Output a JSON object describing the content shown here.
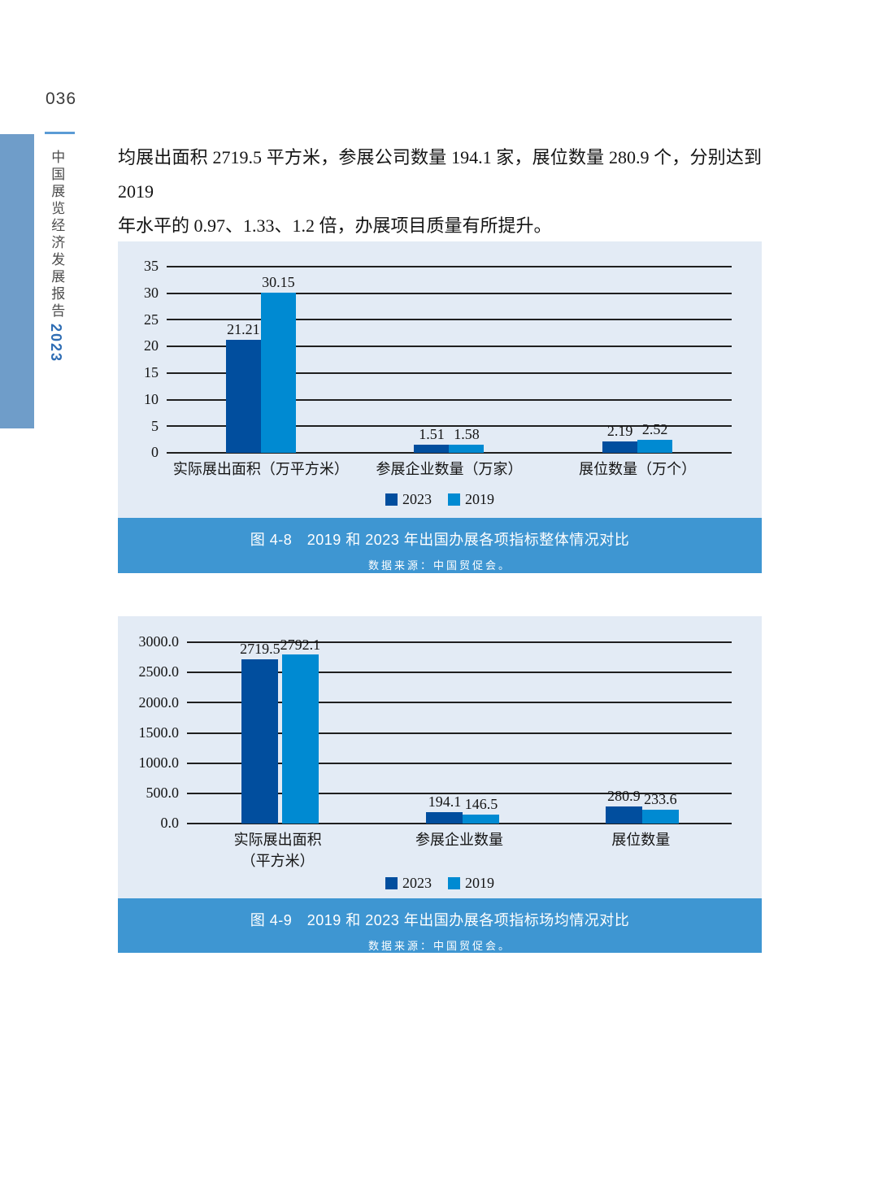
{
  "page": {
    "page_number": "036",
    "sidebar_title": "中国展览经济发展报告",
    "sidebar_year": "2023",
    "paragraph_line1": "均展出面积 2719.5 平方米，参展公司数量 194.1 家，展位数量 280.9 个，分别达到 2019",
    "paragraph_line2": "年水平的 0.97、1.33、1.2 倍，办展项目质量有所提升。"
  },
  "colors": {
    "series_2023": "#014E9E",
    "series_2019": "#008AD2",
    "panel_bg": "#E3EBF5",
    "band_bg": "#3E96D2",
    "gridline": "#1F1F1F",
    "accent_bar": "#6F9DC9",
    "accent_rule": "#5B9BD5",
    "sidebar_year_color": "#2E6DB4"
  },
  "chart_data": [
    {
      "type": "bar",
      "title": "图 4-8　2019 和 2023 年出国办展各项指标整体情况对比",
      "source": "数据来源：中国贸促会。",
      "categories": [
        "实际展出面积（万平方米）",
        "参展企业数量（万家）",
        "展位数量（万个）"
      ],
      "series": [
        {
          "name": "2023",
          "color": "#014E9E",
          "values": [
            21.21,
            1.51,
            2.19
          ]
        },
        {
          "name": "2019",
          "color": "#008AD2",
          "values": [
            30.15,
            1.58,
            2.52
          ]
        }
      ],
      "ylim": [
        0,
        35
      ],
      "ystep": 5,
      "yticks": [
        "0",
        "5",
        "10",
        "15",
        "20",
        "25",
        "30",
        "35"
      ],
      "grid": true,
      "legend_position": "bottom"
    },
    {
      "type": "bar",
      "title": "图 4-9　2019 和 2023 年出国办展各项指标场均情况对比",
      "source": "数据来源：中国贸促会。",
      "categories": [
        "实际展出面积\n（平方米）",
        "参展企业数量",
        "展位数量"
      ],
      "series": [
        {
          "name": "2023",
          "color": "#014E9E",
          "values": [
            2719.5,
            194.1,
            280.9
          ]
        },
        {
          "name": "2019",
          "color": "#008AD2",
          "values": [
            2792.1,
            146.5,
            233.6
          ]
        }
      ],
      "ylim": [
        0,
        3000
      ],
      "ystep": 500,
      "yticks": [
        "0.0",
        "500.0",
        "1000.0",
        "1500.0",
        "2000.0",
        "2500.0",
        "3000.0"
      ],
      "grid": true,
      "legend_position": "bottom"
    }
  ]
}
